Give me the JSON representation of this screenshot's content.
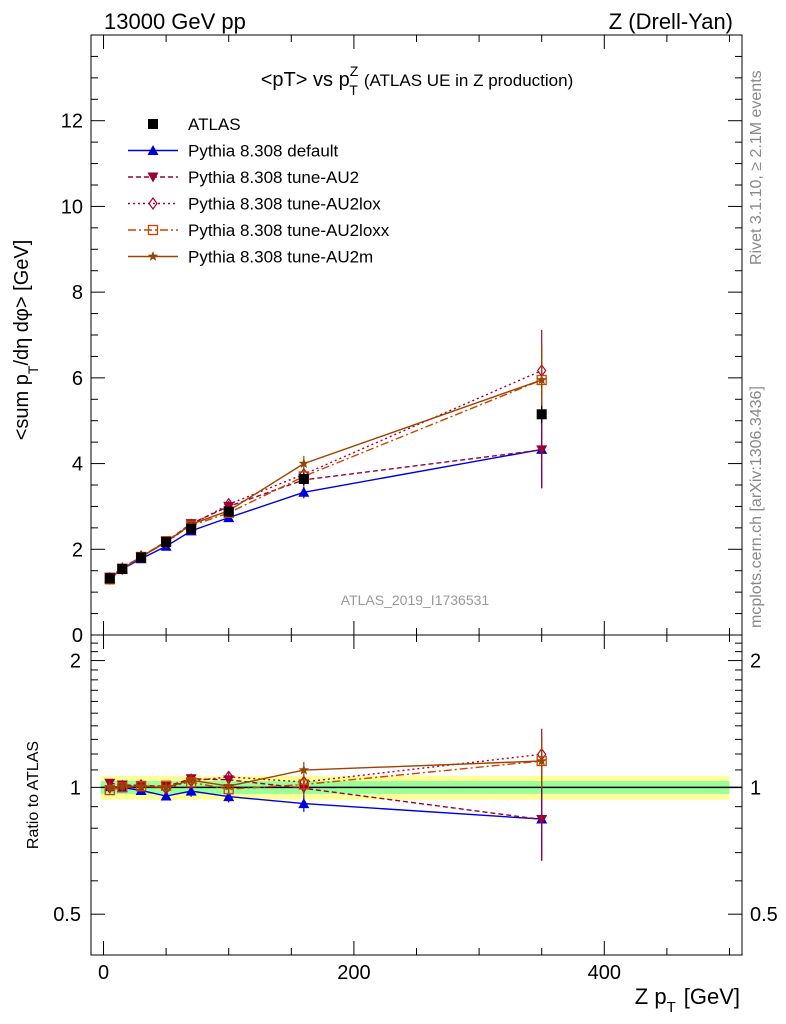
{
  "header": {
    "left": "13000 GeV pp",
    "right": "Z (Drell-Yan)"
  },
  "side": {
    "rivet": "Rivet 3.1.10, ≥ 2.1M events",
    "mcplots": "mcplots.cern.ch [arXiv:1306.3436]"
  },
  "colors": {
    "atlas": "#000000",
    "default": "#0000dd",
    "au2": "#990033",
    "au2lox": "#aa0033",
    "au2loxx": "#cc4400",
    "au2m": "#994400",
    "band_inner": "#99ff99",
    "band_outer": "#ffff99"
  },
  "chart_data": [
    {
      "type": "line",
      "title": "<pT> vs pTZ (ATLAS UE in Z production)",
      "title_parts": {
        "main": "<pT> vs p",
        "sub": "T",
        "sup": "Z",
        "extra": "(ATLAS UE in Z production)"
      },
      "ylabel": "<sum pT/dη dφ> [GeV]",
      "ylabel_parts": {
        "a": "<sum p",
        "sub": "T",
        "b": "/dη dφ> [GeV]"
      },
      "watermark": "ATLAS_2019_I1736531",
      "xlim": [
        -10,
        510
      ],
      "ylim": [
        0,
        14
      ],
      "yticks": [
        0,
        2,
        4,
        6,
        8,
        10,
        12
      ],
      "legend_position": "top-left",
      "x": [
        5,
        15,
        30,
        50,
        70,
        100,
        160,
        350
      ],
      "series": [
        {
          "name": "ATLAS",
          "key": "atlas",
          "marker": "square",
          "values": [
            1.32,
            1.54,
            1.81,
            2.17,
            2.48,
            2.88,
            3.64,
            5.15
          ],
          "errors": [
            0.03,
            0.03,
            0.04,
            0.05,
            0.06,
            0.08,
            0.15,
            0.2
          ]
        },
        {
          "name": "Pythia 8.308 default",
          "key": "default",
          "marker": "triangle-up",
          "dash": "",
          "values": [
            1.33,
            1.54,
            1.78,
            2.07,
            2.43,
            2.74,
            3.33,
            4.33
          ],
          "errors": [
            0.02,
            0.02,
            0.03,
            0.04,
            0.06,
            0.08,
            0.14,
            0.9
          ]
        },
        {
          "name": "Pythia 8.308 tune-AU2",
          "key": "au2",
          "marker": "triangle-down",
          "dash": "5,3",
          "values": [
            1.35,
            1.56,
            1.83,
            2.18,
            2.6,
            3.0,
            3.62,
            4.32
          ],
          "errors": [
            0.02,
            0.02,
            0.03,
            0.04,
            0.06,
            0.08,
            0.14,
            0.9
          ]
        },
        {
          "name": "Pythia 8.308 tune-AU2lox",
          "key": "au2lox",
          "marker": "diamond",
          "dash": "2,3",
          "values": [
            1.32,
            1.55,
            1.83,
            2.16,
            2.57,
            3.05,
            3.75,
            6.17
          ],
          "errors": [
            0.02,
            0.02,
            0.03,
            0.04,
            0.06,
            0.08,
            0.15,
            0.95
          ]
        },
        {
          "name": "Pythia 8.308 tune-AU2loxx",
          "key": "au2loxx",
          "marker": "square-open",
          "dash": "8,3,2,3",
          "values": [
            1.3,
            1.54,
            1.82,
            2.19,
            2.55,
            2.85,
            3.7,
            5.95
          ],
          "errors": [
            0.02,
            0.02,
            0.03,
            0.04,
            0.06,
            0.08,
            0.15,
            0.8
          ]
        },
        {
          "name": "Pythia 8.308 tune-AU2m",
          "key": "au2m",
          "marker": "star",
          "dash": "",
          "values": [
            1.32,
            1.55,
            1.82,
            2.17,
            2.58,
            2.9,
            4.0,
            5.95
          ],
          "errors": [
            0.02,
            0.02,
            0.03,
            0.04,
            0.06,
            0.08,
            0.18,
            0.8
          ]
        }
      ]
    },
    {
      "type": "line",
      "ylabel": "Ratio to ATLAS",
      "xlabel": "Z pT [GeV]",
      "xlabel_parts": {
        "a": "Z p",
        "sub": "T",
        "b": "[GeV]"
      },
      "xlim": [
        -10,
        510
      ],
      "ylim": [
        0.4,
        2.3
      ],
      "y_scale": "log",
      "yticks": [
        0.5,
        1,
        2
      ],
      "ytick_labels": [
        "0.5",
        "1",
        "2"
      ],
      "xticks": [
        0,
        200,
        400
      ],
      "xtick_labels": [
        "0",
        "200",
        "400"
      ],
      "x": [
        5,
        15,
        30,
        50,
        70,
        100,
        160,
        350
      ],
      "reference_band": {
        "inner": 0.035,
        "outer": 0.065
      },
      "series": [
        {
          "name": "Pythia 8.308 default",
          "key": "default",
          "values": [
            1.005,
            1.0,
            0.983,
            0.954,
            0.98,
            0.951,
            0.915,
            0.841
          ],
          "errors": [
            0.02,
            0.02,
            0.02,
            0.02,
            0.03,
            0.03,
            0.04,
            0.17
          ]
        },
        {
          "name": "Pythia 8.308 tune-AU2",
          "key": "au2",
          "values": [
            1.023,
            1.013,
            1.011,
            1.005,
            1.048,
            1.042,
            0.995,
            0.839
          ],
          "errors": [
            0.02,
            0.02,
            0.02,
            0.02,
            0.03,
            0.03,
            0.04,
            0.17
          ]
        },
        {
          "name": "Pythia 8.308 tune-AU2lox",
          "key": "au2lox",
          "values": [
            1.0,
            1.006,
            1.011,
            0.995,
            1.036,
            1.059,
            1.03,
            1.198
          ],
          "errors": [
            0.02,
            0.02,
            0.02,
            0.02,
            0.03,
            0.03,
            0.04,
            0.18
          ]
        },
        {
          "name": "Pythia 8.308 tune-AU2loxx",
          "key": "au2loxx",
          "values": [
            0.985,
            1.0,
            1.006,
            1.009,
            1.028,
            0.99,
            1.016,
            1.155
          ],
          "errors": [
            0.02,
            0.02,
            0.02,
            0.02,
            0.03,
            0.03,
            0.04,
            0.16
          ]
        },
        {
          "name": "Pythia 8.308 tune-AU2m",
          "key": "au2m",
          "values": [
            1.0,
            1.006,
            1.006,
            1.0,
            1.04,
            1.007,
            1.099,
            1.155
          ],
          "errors": [
            0.02,
            0.02,
            0.02,
            0.02,
            0.03,
            0.03,
            0.05,
            0.16
          ]
        }
      ]
    }
  ]
}
